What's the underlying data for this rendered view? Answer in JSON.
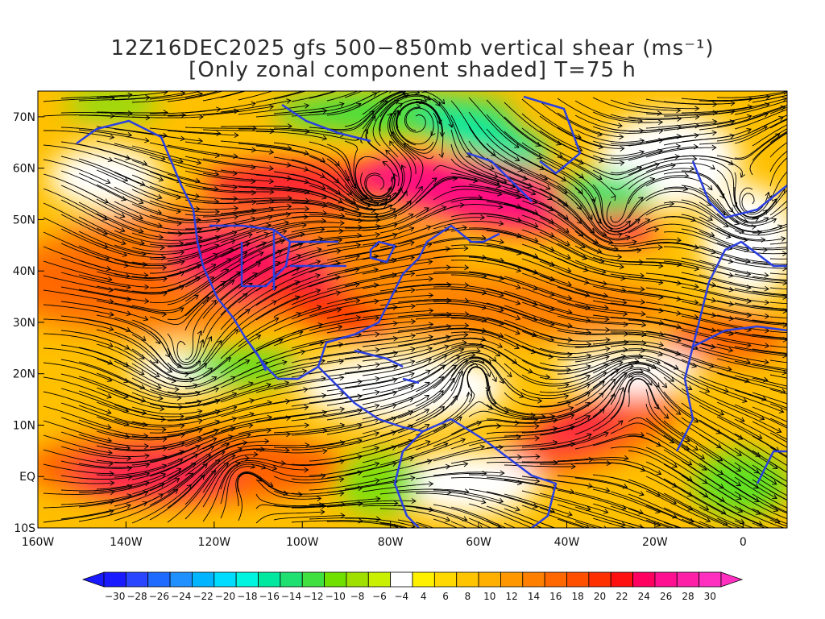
{
  "title": {
    "line1": "12Z16DEC2025 gfs 500−850mb vertical shear (ms⁻¹)",
    "line2": "[Only zonal component shaded] T=75 h"
  },
  "map": {
    "lon_range": [
      -160,
      10
    ],
    "lat_range": [
      -10,
      75
    ],
    "lat_ticks": [
      {
        "value": 70,
        "label": "70N"
      },
      {
        "value": 60,
        "label": "60N"
      },
      {
        "value": 50,
        "label": "50N"
      },
      {
        "value": 40,
        "label": "40N"
      },
      {
        "value": 30,
        "label": "30N"
      },
      {
        "value": 20,
        "label": "20N"
      },
      {
        "value": 10,
        "label": "10N"
      },
      {
        "value": 0,
        "label": "EQ"
      },
      {
        "value": -10,
        "label": "10S"
      }
    ],
    "lon_ticks": [
      {
        "value": -160,
        "label": "160W"
      },
      {
        "value": -140,
        "label": "140W"
      },
      {
        "value": -120,
        "label": "120W"
      },
      {
        "value": -100,
        "label": "100W"
      },
      {
        "value": -80,
        "label": "80W"
      },
      {
        "value": -60,
        "label": "60W"
      },
      {
        "value": -40,
        "label": "40W"
      },
      {
        "value": -20,
        "label": "20W"
      },
      {
        "value": 0,
        "label": "0"
      }
    ],
    "coastline_color": "#2a3fe0",
    "streamline_color": "#000000"
  },
  "colorbar": {
    "colors": [
      "#1a1aff",
      "#2a45ff",
      "#1f6bff",
      "#2090ff",
      "#00b4ff",
      "#00dcff",
      "#00f5e0",
      "#00e8a0",
      "#1fe070",
      "#40e040",
      "#70e000",
      "#a0e000",
      "#c8f000",
      "#ffffff",
      "#fff000",
      "#ffd800",
      "#ffc400",
      "#ffb000",
      "#ff9800",
      "#ff8000",
      "#ff6800",
      "#ff5000",
      "#ff3000",
      "#ff1010",
      "#ff0060",
      "#ff1090",
      "#ff20a8",
      "#ff30c0"
    ],
    "labels": [
      "−30",
      "−28",
      "−26",
      "−24",
      "−22",
      "−20",
      "−18",
      "−16",
      "−14",
      "−12",
      "−10",
      "−8",
      "−6",
      "−4",
      "4",
      "6",
      "8",
      "10",
      "12",
      "14",
      "16",
      "18",
      "20",
      "22",
      "24",
      "26",
      "28",
      "30"
    ]
  }
}
